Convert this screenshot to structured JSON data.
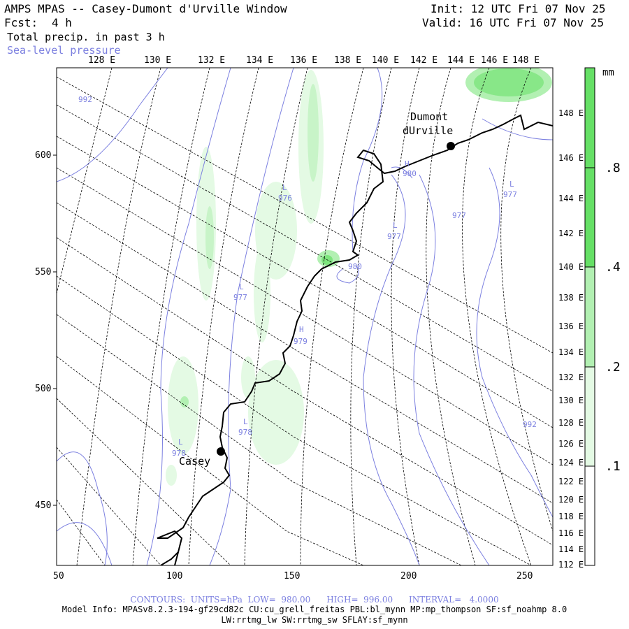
{
  "header": {
    "title": "AMPS MPAS -- Casey-Dumont d'Urville Window",
    "fcst_label": "Fcst:",
    "fcst_value": "4 h",
    "field_1": "Total precip. in past 3 h",
    "field_2": "Sea-level pressure",
    "init": "Init: 12 UTC Fri 07 Nov 25",
    "valid": "Valid: 16 UTC Fri 07 Nov 25"
  },
  "axes": {
    "top_lon_labels": [
      "128 E",
      "130 E",
      "132 E",
      "134 E",
      "136 E",
      "138 E",
      "140 E",
      "142 E",
      "144 E",
      "146 E",
      "148 E"
    ],
    "right_lon_labels": [
      "148 E",
      "146 E",
      "144 E",
      "142 E",
      "140 E",
      "138 E",
      "136 E",
      "134 E",
      "132 E",
      "130 E",
      "128 E",
      "126 E",
      "124 E",
      "122 E",
      "120 E",
      "118 E",
      "116 E",
      "114 E",
      "112 E"
    ],
    "left_grid_labels": [
      "600",
      "550",
      "500",
      "450"
    ],
    "bottom_grid_labels": [
      "50",
      "100",
      "150",
      "200",
      "250"
    ]
  },
  "colorbar": {
    "unit": "mm",
    "labels": [
      ".8",
      ".4",
      ".2",
      ".1"
    ],
    "colors": [
      "#ffffff",
      "#e4fae4",
      "#b2f0b2",
      "#66e066"
    ]
  },
  "stations": [
    {
      "name_lines": [
        "Dumont",
        "dUrville"
      ]
    },
    {
      "name_lines": [
        "Casey"
      ]
    }
  ],
  "pressure_labels": [
    {
      "text": "992"
    },
    {
      "letter": "H",
      "text": "980"
    },
    {
      "letter": "L",
      "text": "976"
    },
    {
      "letter": "L",
      "text": "977"
    },
    {
      "text": "977"
    },
    {
      "letter": "L",
      "text": "977"
    },
    {
      "letter": "L",
      "text": "977"
    },
    {
      "text": "980"
    },
    {
      "letter": "H",
      "text": "979"
    },
    {
      "letter": "L",
      "text": "978"
    },
    {
      "letter": "L",
      "text": "978"
    },
    {
      "text": "992"
    }
  ],
  "footer": {
    "contours": "CONTOURS:  UNITS=hPa  LOW=  980.00      HIGH=  996.00      INTERVAL=   4.0000",
    "model_info": "Model Info: MPASv8.2.3-194-gf29cd82c CU:cu_grell_freitas PBL:bl_mynn MP:mp_thompson SF:sf_noahmp 8.0",
    "model_info_2": "LW:rrtmg_lw SW:rrtmg_sw SFLAY:sf_mynn"
  },
  "style_colors": {
    "contour": "#7c80e0",
    "grid": "#000000",
    "coast": "#000000"
  }
}
